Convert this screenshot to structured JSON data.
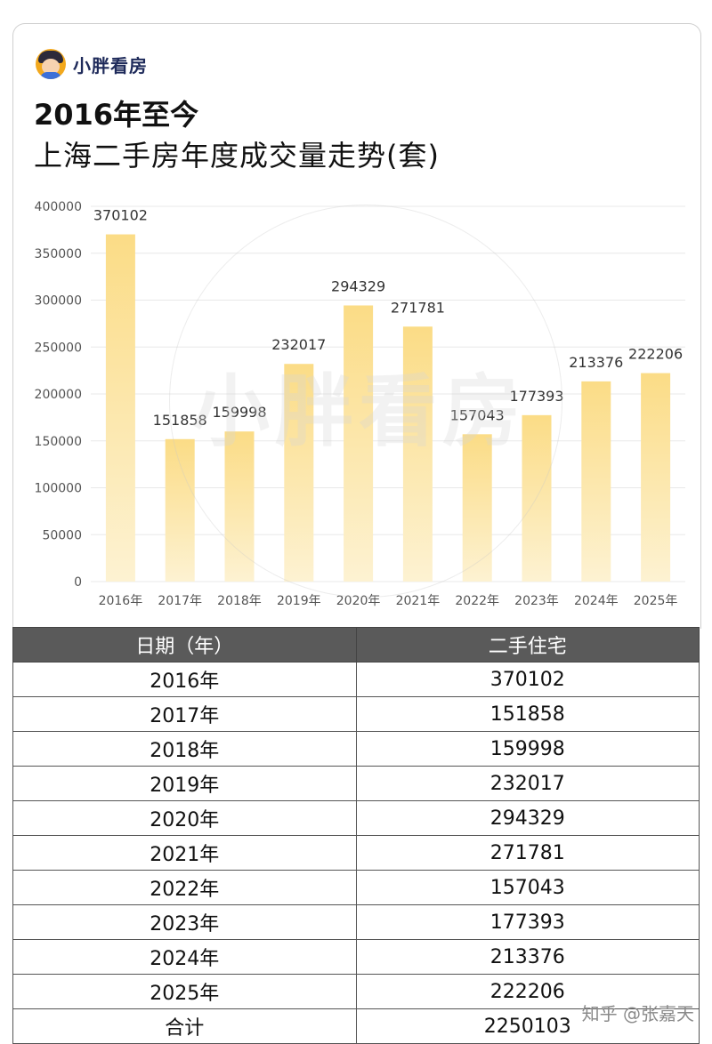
{
  "brand": {
    "name": "小胖看房",
    "logo_icon": "cartoon-avatar-icon"
  },
  "title": {
    "line1": "2016年至今",
    "line2": "上海二手房年度成交量走势(套)"
  },
  "watermark": {
    "text": "小胖看房"
  },
  "colors": {
    "bar_top": "#fbdc86",
    "bar_bottom": "#fdf2d2",
    "grid": "#e8e8e8",
    "header_bg": "#5a5a5a"
  },
  "chart_data": {
    "type": "bar",
    "title": "2016年至今 上海二手房年度成交量走势(套)",
    "categories": [
      "2016年",
      "2017年",
      "2018年",
      "2019年",
      "2020年",
      "2021年",
      "2022年",
      "2023年",
      "2024年",
      "2025年"
    ],
    "values": [
      370102,
      151858,
      159998,
      232017,
      294329,
      271781,
      157043,
      177393,
      213376,
      222206
    ],
    "ylim": [
      0,
      400000
    ],
    "yticks": [
      0,
      50000,
      100000,
      150000,
      200000,
      250000,
      300000,
      350000,
      400000
    ],
    "grid": true,
    "data_labels": true
  },
  "table": {
    "headers": [
      "日期（年）",
      "二手住宅"
    ],
    "rows": [
      [
        "2016年",
        "370102"
      ],
      [
        "2017年",
        "151858"
      ],
      [
        "2018年",
        "159998"
      ],
      [
        "2019年",
        "232017"
      ],
      [
        "2020年",
        "294329"
      ],
      [
        "2021年",
        "271781"
      ],
      [
        "2022年",
        "157043"
      ],
      [
        "2023年",
        "177393"
      ],
      [
        "2024年",
        "213376"
      ],
      [
        "2025年",
        "222206"
      ]
    ],
    "total_label": "合计",
    "total_value": "2250103"
  },
  "footer": {
    "watermark": "知乎 @张嘉天"
  }
}
